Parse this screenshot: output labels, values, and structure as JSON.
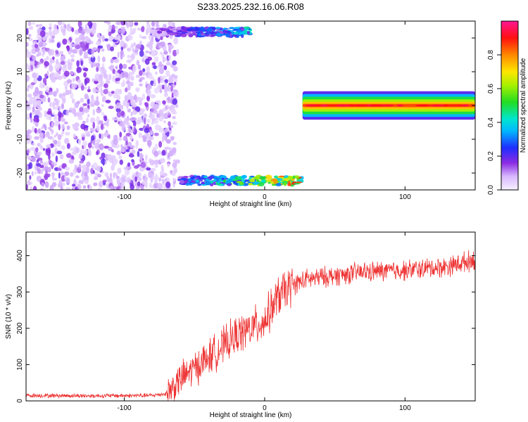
{
  "title": "S233.2025.232.16.06.R08",
  "chart_data": [
    {
      "type": "heatmap",
      "xlabel": "Height of straight line (km)",
      "ylabel": "Frequency (Hz)",
      "xlim": [
        -170,
        150
      ],
      "ylim": [
        -25,
        25
      ],
      "xticks": [
        -100,
        0,
        100
      ],
      "yticks": [
        -20,
        -10,
        0,
        10,
        20
      ],
      "colorbar": {
        "label": "Normalized spectral amplitude",
        "range": [
          0,
          1
        ],
        "ticks": [
          "0.0",
          "0.2",
          "0.4",
          "0.6",
          "0.8"
        ],
        "colormap": "rainbow (white-purple-blue-cyan-green-yellow-red-magenta)"
      },
      "features": [
        {
          "name": "broadband noise",
          "x_range": [
            -170,
            -70
          ],
          "y_range": [
            -25,
            25
          ],
          "amplitude": 0.15
        },
        {
          "name": "upper-edge band",
          "x_range": [
            -80,
            -10
          ],
          "y": 23,
          "amplitude": 0.4
        },
        {
          "name": "lower-edge band",
          "x_range": [
            -60,
            27
          ],
          "y": -23.5,
          "amplitude": 0.8
        },
        {
          "name": "zero-frequency line",
          "x_range": [
            27,
            150
          ],
          "y": 0,
          "amplitude": 0.85
        }
      ]
    },
    {
      "type": "line",
      "xlabel": "Height of straight line (km)",
      "ylabel": "SNR (10 * v/v)",
      "xlim": [
        -170,
        150
      ],
      "ylim": [
        0,
        465
      ],
      "xticks": [
        -100,
        0,
        100
      ],
      "yticks": [
        0,
        100,
        200,
        300,
        400
      ],
      "line_color": "#ee3333",
      "trend": {
        "x": [
          -170,
          -120,
          -80,
          -70,
          -60,
          -40,
          -20,
          0,
          10,
          20,
          30,
          50,
          70,
          100,
          130,
          150
        ],
        "y": [
          15,
          14,
          15,
          20,
          60,
          120,
          180,
          220,
          290,
          320,
          335,
          345,
          355,
          360,
          370,
          390
        ]
      }
    }
  ]
}
